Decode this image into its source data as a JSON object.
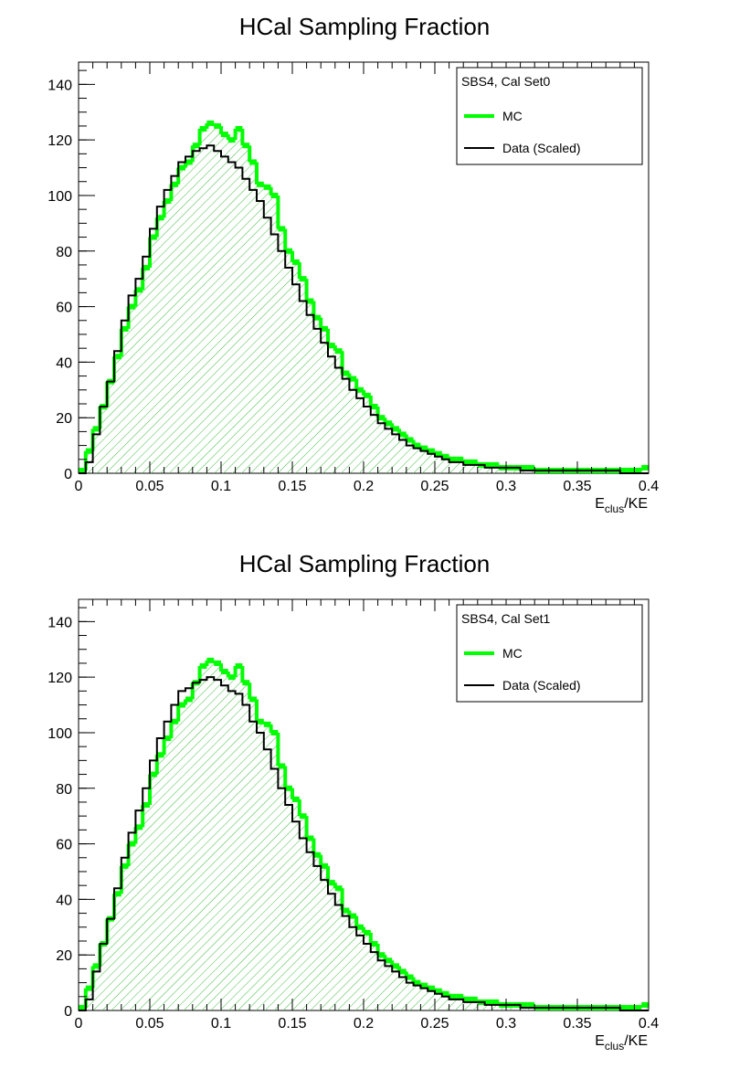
{
  "chart_data": [
    {
      "type": "histogram",
      "title": "HCal Sampling Fraction",
      "xlabel_main": "E",
      "xlabel_sub": "clus",
      "xlabel_tail": "/KE",
      "ylabel": "",
      "xlim": [
        0,
        0.4
      ],
      "ylim": [
        0,
        148
      ],
      "x_ticks": [
        "0",
        "0.05",
        "0.1",
        "0.15",
        "0.2",
        "0.25",
        "0.3",
        "0.35",
        "0.4"
      ],
      "y_ticks": [
        "0",
        "20",
        "40",
        "60",
        "80",
        "100",
        "120",
        "140"
      ],
      "grid": false,
      "legend_position": "top-right",
      "legend": {
        "header": "SBS4, Cal Set0",
        "entries": [
          {
            "label": "MC",
            "color": "#00ff00"
          },
          {
            "label": "Data (Scaled)",
            "color": "#000000"
          }
        ]
      },
      "series": [
        {
          "name": "MC",
          "color": "#00ff00",
          "fill": "hatched",
          "x": [
            0.0,
            0.005,
            0.01,
            0.015,
            0.02,
            0.025,
            0.03,
            0.035,
            0.04,
            0.045,
            0.05,
            0.055,
            0.06,
            0.065,
            0.07,
            0.075,
            0.08,
            0.085,
            0.09,
            0.095,
            0.1,
            0.105,
            0.11,
            0.115,
            0.12,
            0.125,
            0.13,
            0.135,
            0.14,
            0.145,
            0.15,
            0.155,
            0.16,
            0.165,
            0.17,
            0.175,
            0.18,
            0.185,
            0.19,
            0.195,
            0.2,
            0.205,
            0.21,
            0.215,
            0.22,
            0.225,
            0.23,
            0.235,
            0.24,
            0.245,
            0.25,
            0.255,
            0.26,
            0.265,
            0.27,
            0.275,
            0.28,
            0.285,
            0.29,
            0.295,
            0.3,
            0.305,
            0.31,
            0.315,
            0.32,
            0.325,
            0.33,
            0.335,
            0.34,
            0.345,
            0.35,
            0.355,
            0.36,
            0.365,
            0.37,
            0.375,
            0.38,
            0.385,
            0.39,
            0.395
          ],
          "values": [
            1,
            8,
            16,
            24,
            33,
            42,
            52,
            60,
            66,
            74,
            85,
            92,
            98,
            104,
            110,
            112,
            118,
            124,
            126,
            125,
            122,
            120,
            124,
            118,
            112,
            104,
            103,
            100,
            88,
            80,
            76,
            70,
            62,
            56,
            52,
            46,
            44,
            36,
            34,
            30,
            28,
            24,
            20,
            18,
            16,
            14,
            12,
            10,
            9,
            8,
            7,
            6,
            5,
            5,
            4,
            4,
            3,
            3,
            3,
            2,
            2,
            2,
            2,
            2,
            1,
            1,
            1,
            1,
            1,
            1,
            1,
            1,
            1,
            1,
            1,
            1,
            1,
            1,
            1,
            2
          ]
        },
        {
          "name": "Data (Scaled)",
          "color": "#000000",
          "fill": "none",
          "x": [
            0.0,
            0.005,
            0.01,
            0.015,
            0.02,
            0.025,
            0.03,
            0.035,
            0.04,
            0.045,
            0.05,
            0.055,
            0.06,
            0.065,
            0.07,
            0.075,
            0.08,
            0.085,
            0.09,
            0.095,
            0.1,
            0.105,
            0.11,
            0.115,
            0.12,
            0.125,
            0.13,
            0.135,
            0.14,
            0.145,
            0.15,
            0.155,
            0.16,
            0.165,
            0.17,
            0.175,
            0.18,
            0.185,
            0.19,
            0.195,
            0.2,
            0.205,
            0.21,
            0.215,
            0.22,
            0.225,
            0.23,
            0.235,
            0.24,
            0.245,
            0.25,
            0.255,
            0.26,
            0.265,
            0.27,
            0.275,
            0.28,
            0.285,
            0.29,
            0.295,
            0.3,
            0.305,
            0.31,
            0.315,
            0.32,
            0.325,
            0.33,
            0.335,
            0.34,
            0.345,
            0.35,
            0.355,
            0.36,
            0.365,
            0.37,
            0.375,
            0.38,
            0.385,
            0.39,
            0.395
          ],
          "values": [
            0,
            4,
            14,
            24,
            33,
            44,
            55,
            64,
            70,
            78,
            88,
            96,
            102,
            107,
            112,
            114,
            116,
            117,
            118,
            116,
            114,
            112,
            110,
            106,
            102,
            98,
            92,
            86,
            80,
            74,
            68,
            62,
            57,
            52,
            47,
            42,
            38,
            34,
            30,
            27,
            24,
            21,
            18,
            16,
            14,
            12,
            10,
            9,
            8,
            7,
            6,
            5,
            4,
            4,
            3,
            3,
            3,
            2,
            2,
            2,
            2,
            2,
            1,
            1,
            1,
            1,
            1,
            1,
            1,
            1,
            1,
            1,
            1,
            1,
            1,
            1,
            0,
            0,
            0,
            0
          ]
        }
      ]
    },
    {
      "type": "histogram",
      "title": "HCal Sampling Fraction",
      "xlabel_main": "E",
      "xlabel_sub": "clus",
      "xlabel_tail": "/KE",
      "ylabel": "",
      "xlim": [
        0,
        0.4
      ],
      "ylim": [
        0,
        148
      ],
      "x_ticks": [
        "0",
        "0.05",
        "0.1",
        "0.15",
        "0.2",
        "0.25",
        "0.3",
        "0.35",
        "0.4"
      ],
      "y_ticks": [
        "0",
        "20",
        "40",
        "60",
        "80",
        "100",
        "120",
        "140"
      ],
      "grid": false,
      "legend_position": "top-right",
      "legend": {
        "header": "SBS4, Cal Set1",
        "entries": [
          {
            "label": "MC",
            "color": "#00ff00"
          },
          {
            "label": "Data (Scaled)",
            "color": "#000000"
          }
        ]
      },
      "series": [
        {
          "name": "MC",
          "color": "#00ff00",
          "fill": "hatched",
          "x": [
            0.0,
            0.005,
            0.01,
            0.015,
            0.02,
            0.025,
            0.03,
            0.035,
            0.04,
            0.045,
            0.05,
            0.055,
            0.06,
            0.065,
            0.07,
            0.075,
            0.08,
            0.085,
            0.09,
            0.095,
            0.1,
            0.105,
            0.11,
            0.115,
            0.12,
            0.125,
            0.13,
            0.135,
            0.14,
            0.145,
            0.15,
            0.155,
            0.16,
            0.165,
            0.17,
            0.175,
            0.18,
            0.185,
            0.19,
            0.195,
            0.2,
            0.205,
            0.21,
            0.215,
            0.22,
            0.225,
            0.23,
            0.235,
            0.24,
            0.245,
            0.25,
            0.255,
            0.26,
            0.265,
            0.27,
            0.275,
            0.28,
            0.285,
            0.29,
            0.295,
            0.3,
            0.305,
            0.31,
            0.315,
            0.32,
            0.325,
            0.33,
            0.335,
            0.34,
            0.345,
            0.35,
            0.355,
            0.36,
            0.365,
            0.37,
            0.375,
            0.38,
            0.385,
            0.39,
            0.395
          ],
          "values": [
            1,
            8,
            16,
            24,
            33,
            42,
            52,
            60,
            66,
            74,
            85,
            92,
            98,
            104,
            110,
            112,
            118,
            124,
            126,
            125,
            122,
            120,
            124,
            118,
            112,
            104,
            103,
            100,
            88,
            80,
            76,
            70,
            62,
            56,
            52,
            46,
            44,
            36,
            34,
            30,
            28,
            24,
            20,
            18,
            16,
            14,
            12,
            10,
            9,
            8,
            7,
            6,
            5,
            5,
            4,
            4,
            3,
            3,
            3,
            2,
            2,
            2,
            2,
            2,
            1,
            1,
            1,
            1,
            1,
            1,
            1,
            1,
            1,
            1,
            1,
            1,
            1,
            1,
            1,
            2
          ]
        },
        {
          "name": "Data (Scaled)",
          "color": "#000000",
          "fill": "none",
          "x": [
            0.0,
            0.005,
            0.01,
            0.015,
            0.02,
            0.025,
            0.03,
            0.035,
            0.04,
            0.045,
            0.05,
            0.055,
            0.06,
            0.065,
            0.07,
            0.075,
            0.08,
            0.085,
            0.09,
            0.095,
            0.1,
            0.105,
            0.11,
            0.115,
            0.12,
            0.125,
            0.13,
            0.135,
            0.14,
            0.145,
            0.15,
            0.155,
            0.16,
            0.165,
            0.17,
            0.175,
            0.18,
            0.185,
            0.19,
            0.195,
            0.2,
            0.205,
            0.21,
            0.215,
            0.22,
            0.225,
            0.23,
            0.235,
            0.24,
            0.245,
            0.25,
            0.255,
            0.26,
            0.265,
            0.27,
            0.275,
            0.28,
            0.285,
            0.29,
            0.295,
            0.3,
            0.305,
            0.31,
            0.315,
            0.32,
            0.325,
            0.33,
            0.335,
            0.34,
            0.345,
            0.35,
            0.355,
            0.36,
            0.365,
            0.37,
            0.375,
            0.38,
            0.385,
            0.39,
            0.395
          ],
          "values": [
            0,
            4,
            14,
            24,
            33,
            44,
            55,
            64,
            72,
            80,
            90,
            98,
            104,
            110,
            115,
            116,
            118,
            119,
            120,
            119,
            117,
            115,
            114,
            110,
            104,
            100,
            94,
            87,
            80,
            74,
            68,
            62,
            57,
            52,
            47,
            42,
            38,
            34,
            30,
            27,
            24,
            21,
            18,
            16,
            14,
            12,
            10,
            9,
            8,
            7,
            6,
            5,
            4,
            4,
            3,
            3,
            3,
            2,
            2,
            2,
            2,
            2,
            1,
            1,
            1,
            1,
            1,
            1,
            1,
            1,
            1,
            1,
            1,
            1,
            1,
            1,
            0,
            0,
            0,
            0
          ]
        }
      ]
    }
  ]
}
